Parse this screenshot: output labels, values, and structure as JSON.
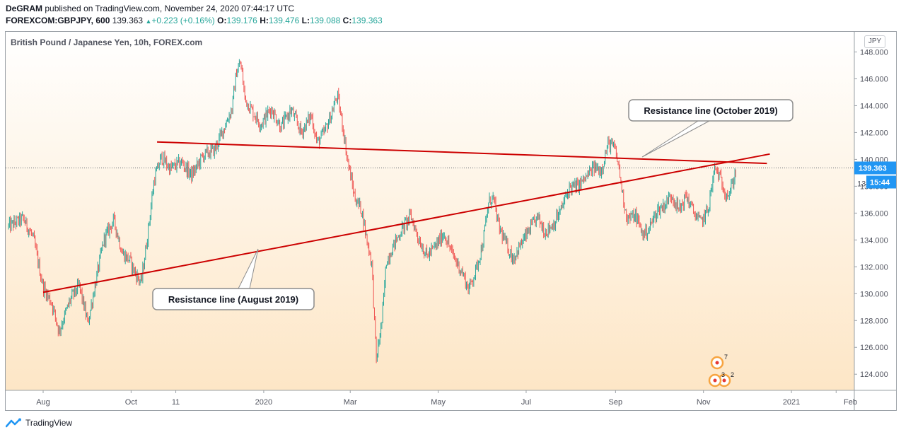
{
  "header": {
    "author": "DeGRAM",
    "published_text": "published on TradingView.com, November 24, 2020 07:44:17 UTC",
    "symbol": "FOREXCOM:GBPJPY, 600",
    "last": "139.363",
    "change": "+0.223 (+0.16%)",
    "o_label": "O:",
    "o_value": "139.176",
    "h_label": "H:",
    "h_value": "139.476",
    "l_label": "L:",
    "l_value": "139.088",
    "c_label": "C:",
    "c_value": "139.363"
  },
  "pane_title": "British Pound / Japanese Yen, 10h, FOREX.com",
  "currency_button": "JPY",
  "price_label": "139.363",
  "countdown_label": "15:44",
  "partial_tick": "13",
  "footer_brand": "TradingView",
  "colors": {
    "up": "#26a69a",
    "down": "#ef5350",
    "trendline": "#cc0000",
    "bg_top": "#ffffff",
    "bg_bottom": "#fde6c6",
    "price_label_bg": "#2196f3"
  },
  "event_markers": [
    "7",
    "2",
    "3"
  ],
  "chart_data": {
    "type": "candlestick",
    "title": "British Pound / Japanese Yen, 10h, FOREX.com",
    "ylim": [
      122.8,
      149.5
    ],
    "y_ticks": [
      124,
      126,
      128,
      130,
      132,
      134,
      136,
      138,
      140,
      142,
      144,
      146,
      148
    ],
    "y_tick_labels": [
      "124.000",
      "126.000",
      "128.000",
      "130.000",
      "132.000",
      "134.000",
      "136.000",
      "138.000",
      "140.000",
      "142.000",
      "144.000",
      "146.000",
      "148.000"
    ],
    "x_tick_labels": [
      "Aug",
      "Oct",
      "11",
      "2020",
      "Mar",
      "May",
      "Jul",
      "Sep",
      "Nov",
      "2021",
      "Feb"
    ],
    "x_tick_months": [
      "2019-08",
      "2019-10",
      "2019-11",
      "2020-01",
      "2020-03",
      "2020-05",
      "2020-07",
      "2020-09",
      "2020-11",
      "2021-01",
      "2021-02"
    ],
    "close_path": [
      [
        "2019-07-08",
        135.0
      ],
      [
        "2019-07-18",
        135.6
      ],
      [
        "2019-07-25",
        134.2
      ],
      [
        "2019-08-01",
        130.5
      ],
      [
        "2019-08-07",
        129.3
      ],
      [
        "2019-08-12",
        127.2
      ],
      [
        "2019-08-20",
        129.6
      ],
      [
        "2019-08-26",
        130.6
      ],
      [
        "2019-09-01",
        127.8
      ],
      [
        "2019-09-04",
        129.5
      ],
      [
        "2019-09-12",
        134.0
      ],
      [
        "2019-09-19",
        135.5
      ],
      [
        "2019-09-25",
        133.0
      ],
      [
        "2019-09-30",
        132.5
      ],
      [
        "2019-10-04",
        131.5
      ],
      [
        "2019-10-08",
        130.8
      ],
      [
        "2019-10-12",
        134.0
      ],
      [
        "2019-10-17",
        138.5
      ],
      [
        "2019-10-22",
        140.2
      ],
      [
        "2019-10-28",
        139.3
      ],
      [
        "2019-11-05",
        139.8
      ],
      [
        "2019-11-12",
        138.8
      ],
      [
        "2019-11-20",
        140.3
      ],
      [
        "2019-11-28",
        140.7
      ],
      [
        "2019-12-05",
        142.5
      ],
      [
        "2019-12-10",
        143.8
      ],
      [
        "2019-12-13",
        146.5
      ],
      [
        "2019-12-16",
        147.2
      ],
      [
        "2019-12-19",
        144.5
      ],
      [
        "2019-12-24",
        143.6
      ],
      [
        "2019-12-30",
        142.6
      ],
      [
        "2020-01-06",
        143.8
      ],
      [
        "2020-01-13",
        142.4
      ],
      [
        "2020-01-20",
        143.7
      ],
      [
        "2020-01-27",
        142.0
      ],
      [
        "2020-02-03",
        143.3
      ],
      [
        "2020-02-07",
        141.2
      ],
      [
        "2020-02-12",
        142.0
      ],
      [
        "2020-02-17",
        143.4
      ],
      [
        "2020-02-21",
        144.8
      ],
      [
        "2020-02-25",
        142.3
      ],
      [
        "2020-02-28",
        140.0
      ],
      [
        "2020-03-04",
        137.2
      ],
      [
        "2020-03-09",
        136.2
      ],
      [
        "2020-03-12",
        134.3
      ],
      [
        "2020-03-16",
        132.2
      ],
      [
        "2020-03-19",
        125.0
      ],
      [
        "2020-03-23",
        128.0
      ],
      [
        "2020-03-26",
        132.4
      ],
      [
        "2020-04-01",
        133.8
      ],
      [
        "2020-04-07",
        135.0
      ],
      [
        "2020-04-12",
        135.8
      ],
      [
        "2020-04-17",
        134.2
      ],
      [
        "2020-04-23",
        132.8
      ],
      [
        "2020-04-29",
        133.5
      ],
      [
        "2020-05-05",
        134.5
      ],
      [
        "2020-05-11",
        132.9
      ],
      [
        "2020-05-18",
        131.5
      ],
      [
        "2020-05-22",
        130.3
      ],
      [
        "2020-05-27",
        131.7
      ],
      [
        "2020-06-01",
        133.8
      ],
      [
        "2020-06-05",
        136.8
      ],
      [
        "2020-06-08",
        137.2
      ],
      [
        "2020-06-12",
        135.0
      ],
      [
        "2020-06-17",
        133.7
      ],
      [
        "2020-06-22",
        132.6
      ],
      [
        "2020-06-27",
        133.6
      ],
      [
        "2020-07-03",
        134.7
      ],
      [
        "2020-07-09",
        135.7
      ],
      [
        "2020-07-14",
        134.6
      ],
      [
        "2020-07-20",
        135.2
      ],
      [
        "2020-07-25",
        136.2
      ],
      [
        "2020-07-31",
        137.9
      ],
      [
        "2020-08-06",
        138.0
      ],
      [
        "2020-08-12",
        138.7
      ],
      [
        "2020-08-17",
        139.4
      ],
      [
        "2020-08-22",
        139.2
      ],
      [
        "2020-08-27",
        141.2
      ],
      [
        "2020-08-31",
        140.9
      ],
      [
        "2020-09-03",
        139.6
      ],
      [
        "2020-09-06",
        137.3
      ],
      [
        "2020-09-09",
        135.6
      ],
      [
        "2020-09-15",
        135.8
      ],
      [
        "2020-09-20",
        134.4
      ],
      [
        "2020-09-24",
        134.8
      ],
      [
        "2020-09-30",
        136.2
      ],
      [
        "2020-10-05",
        136.6
      ],
      [
        "2020-10-10",
        137.4
      ],
      [
        "2020-10-15",
        136.2
      ],
      [
        "2020-10-20",
        137.3
      ],
      [
        "2020-10-25",
        136.1
      ],
      [
        "2020-10-30",
        135.3
      ],
      [
        "2020-11-04",
        136.2
      ],
      [
        "2020-11-09",
        139.4
      ],
      [
        "2020-11-12",
        138.7
      ],
      [
        "2020-11-16",
        137.6
      ],
      [
        "2020-11-19",
        137.4
      ],
      [
        "2020-11-24",
        139.363
      ]
    ],
    "resistance_lines": [
      {
        "label": "Resistance line (August 2019)",
        "start": [
          "2019-08-01",
          130.1
        ],
        "end": [
          "2020-12-17",
          140.4
        ]
      },
      {
        "label": "Resistance line (October 2019)",
        "start": [
          "2019-10-19",
          141.3
        ],
        "end": [
          "2020-12-15",
          139.7
        ]
      }
    ],
    "last_price": 139.363
  }
}
